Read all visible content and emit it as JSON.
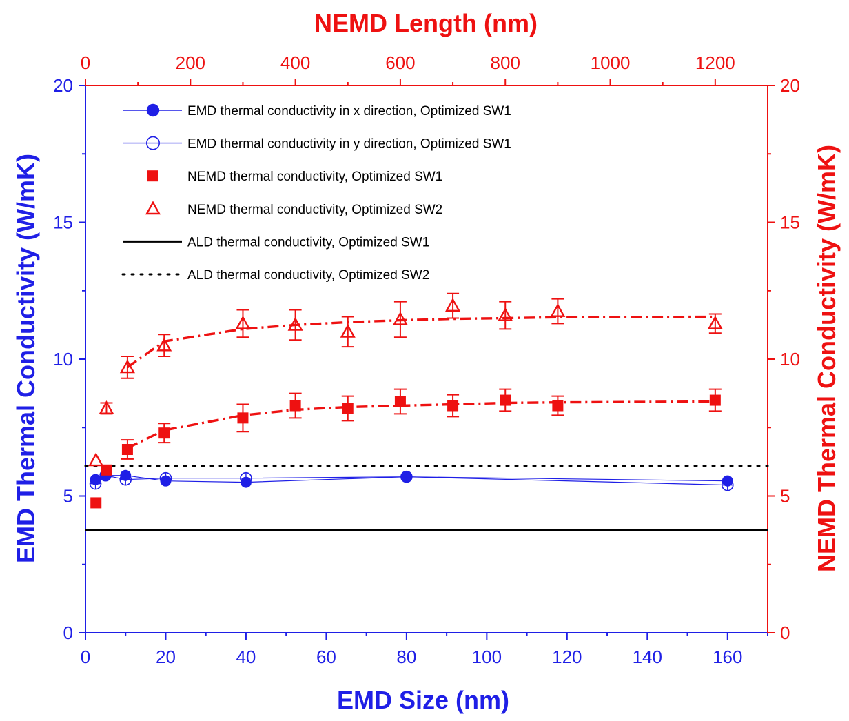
{
  "chart_data": {
    "type": "scatter",
    "colors": {
      "blue": "#1f1fe6",
      "red": "#ee1111",
      "black": "#000000"
    },
    "axes": {
      "x_bottom": {
        "label": "EMD Size (nm)",
        "range": [
          0,
          170
        ],
        "ticks": [
          0,
          20,
          40,
          60,
          80,
          100,
          120,
          140,
          160
        ]
      },
      "x_top": {
        "label": "NEMD Length (nm)",
        "range": [
          0,
          1300
        ],
        "ticks": [
          0,
          200,
          400,
          600,
          800,
          1000,
          1200
        ]
      },
      "y_left": {
        "label": "EMD Thermal Conductivity (W/mK)",
        "range": [
          0,
          20
        ],
        "ticks": [
          0,
          5,
          10,
          15,
          20
        ]
      },
      "y_right": {
        "label": "NEMD Thermal Conductivity (W/mK)",
        "range": [
          0,
          20
        ],
        "ticks": [
          0,
          5,
          10,
          15,
          20
        ]
      }
    },
    "grid": false,
    "legend_position": "top-left",
    "series": [
      {
        "name": "EMD thermal conductivity in x direction, Optimized SW1",
        "marker": "filled-circle",
        "axis": "bottom-left",
        "x": [
          2.5,
          5,
          10,
          20,
          40,
          80,
          160
        ],
        "y": [
          5.6,
          5.75,
          5.75,
          5.55,
          5.5,
          5.7,
          5.55
        ]
      },
      {
        "name": "EMD thermal conductivity in y direction, Optimized SW1",
        "marker": "open-circle-plus",
        "axis": "bottom-left",
        "x": [
          2.5,
          5,
          10,
          20,
          40,
          80,
          160
        ],
        "y": [
          5.45,
          5.75,
          5.6,
          5.65,
          5.65,
          5.7,
          5.4
        ]
      },
      {
        "name": "NEMD thermal conductivity, Optimized SW1",
        "marker": "filled-square",
        "axis": "top-right",
        "x": [
          20,
          40,
          80,
          150,
          300,
          400,
          500,
          600,
          700,
          800,
          900,
          1200
        ],
        "y": [
          4.75,
          5.95,
          6.7,
          7.3,
          7.85,
          8.3,
          8.2,
          8.45,
          8.3,
          8.5,
          8.3,
          8.5
        ],
        "err": [
          0,
          0,
          0.35,
          0.35,
          0.5,
          0.45,
          0.45,
          0.45,
          0.4,
          0.4,
          0.35,
          0.4
        ]
      },
      {
        "name": "NEMD thermal conductivity, Optimized SW2",
        "marker": "open-triangle",
        "axis": "top-right",
        "x": [
          20,
          40,
          80,
          150,
          300,
          400,
          500,
          600,
          700,
          800,
          900,
          1200
        ],
        "y": [
          6.3,
          8.2,
          9.7,
          10.5,
          11.3,
          11.25,
          11.0,
          11.45,
          11.95,
          11.6,
          11.75,
          11.3
        ],
        "err": [
          0,
          0.2,
          0.4,
          0.4,
          0.5,
          0.55,
          0.55,
          0.65,
          0.45,
          0.5,
          0.45,
          0.35
        ]
      },
      {
        "name": "ALD thermal conductivity, Optimized SW1",
        "line": "solid",
        "axis": "bottom-left",
        "y_const": 3.75
      },
      {
        "name": "ALD thermal conductivity, Optimized SW2",
        "line": "dotted",
        "axis": "bottom-left",
        "y_const": 6.1
      }
    ],
    "fits": [
      {
        "style": "dash-dot",
        "axis": "top-right",
        "for": "NEMD thermal conductivity, Optimized SW1",
        "x": [
          80,
          150,
          300,
          400,
          500,
          600,
          700,
          800,
          900,
          1200
        ],
        "y": [
          6.75,
          7.4,
          7.95,
          8.15,
          8.25,
          8.3,
          8.35,
          8.4,
          8.42,
          8.45
        ]
      },
      {
        "style": "dash-dot",
        "axis": "top-right",
        "for": "NEMD thermal conductivity, Optimized SW2",
        "x": [
          80,
          150,
          300,
          400,
          500,
          600,
          700,
          800,
          900,
          1200
        ],
        "y": [
          9.7,
          10.65,
          11.1,
          11.25,
          11.35,
          11.42,
          11.47,
          11.5,
          11.53,
          11.55
        ]
      }
    ]
  }
}
